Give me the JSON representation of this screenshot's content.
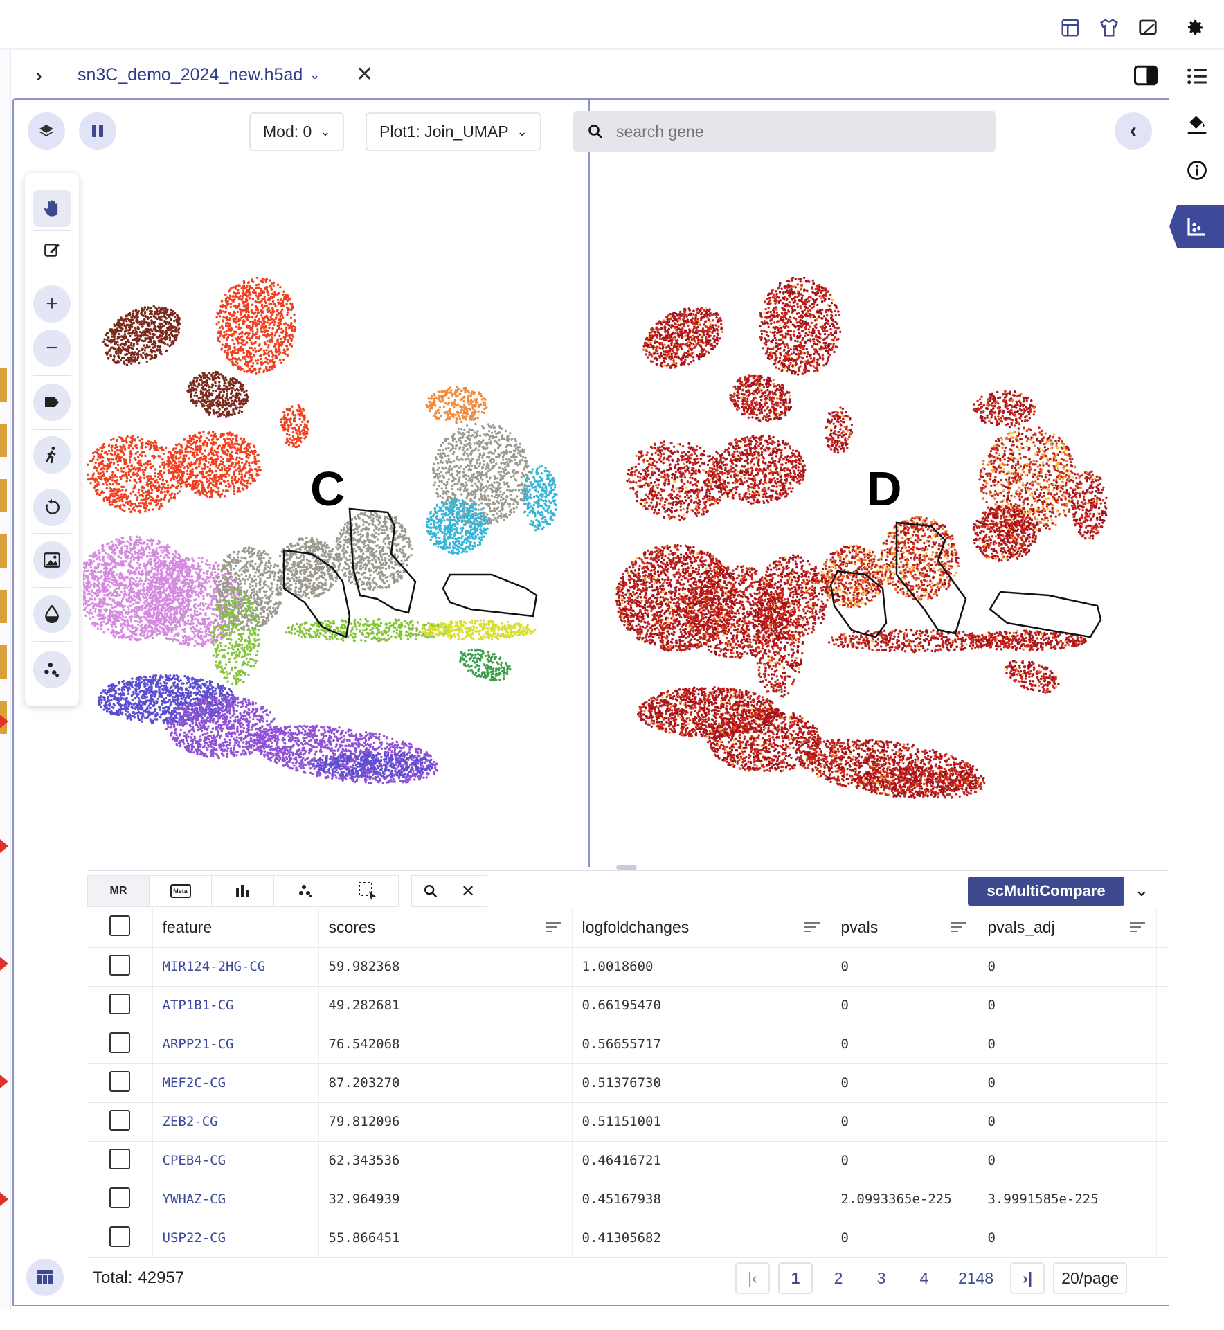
{
  "tab": {
    "title": "sn3C_demo_2024_new.h5ad"
  },
  "toolbar": {
    "mod_select": "Mod: 0",
    "plot_select": "Plot1: Join_UMAP",
    "search_placeholder": "search gene"
  },
  "plot_labels": {
    "left": "C",
    "right": "D"
  },
  "table": {
    "tabs": [
      "MR",
      "Meta",
      "bar-chart-icon",
      "scatter-icon",
      "select-icon"
    ],
    "compare_label": "scMultiCompare",
    "columns": [
      "feature",
      "scores",
      "logfoldchanges",
      "pvals",
      "pvals_adj"
    ],
    "rows": [
      {
        "feature": "MIR124-2HG-CG",
        "scores": "59.982368",
        "logfoldchanges": "1.0018600",
        "pvals": "0",
        "pvals_adj": "0"
      },
      {
        "feature": "ATP1B1-CG",
        "scores": "49.282681",
        "logfoldchanges": "0.66195470",
        "pvals": "0",
        "pvals_adj": "0"
      },
      {
        "feature": "ARPP21-CG",
        "scores": "76.542068",
        "logfoldchanges": "0.56655717",
        "pvals": "0",
        "pvals_adj": "0"
      },
      {
        "feature": "MEF2C-CG",
        "scores": "87.203270",
        "logfoldchanges": "0.51376730",
        "pvals": "0",
        "pvals_adj": "0"
      },
      {
        "feature": "ZEB2-CG",
        "scores": "79.812096",
        "logfoldchanges": "0.51151001",
        "pvals": "0",
        "pvals_adj": "0"
      },
      {
        "feature": "CPEB4-CG",
        "scores": "62.343536",
        "logfoldchanges": "0.46416721",
        "pvals": "0",
        "pvals_adj": "0"
      },
      {
        "feature": "YWHAZ-CG",
        "scores": "32.964939",
        "logfoldchanges": "0.45167938",
        "pvals": "2.0993365e-225",
        "pvals_adj": "3.9991585e-225"
      },
      {
        "feature": "USP22-CG",
        "scores": "55.866451",
        "logfoldchanges": "0.41305682",
        "pvals": "0",
        "pvals_adj": "0"
      }
    ]
  },
  "footer": {
    "total_label": "Total:",
    "total_value": "42957",
    "pages": [
      "1",
      "2",
      "3",
      "4",
      "2148"
    ],
    "current_page": "1",
    "page_size": "20/page"
  },
  "icons": {
    "top": [
      "layout-icon",
      "shirt-icon",
      "monitor-icon",
      "settings-gear-icon"
    ],
    "right_sidebar": [
      "list-icon",
      "paint-bucket-icon",
      "info-icon",
      "chart-icon"
    ],
    "plot_tools": [
      "hand-pan-icon",
      "edit-icon",
      "zoom-in-icon",
      "zoom-out-icon",
      "label-tag-icon",
      "walk-icon",
      "reset-icon",
      "image-export-icon",
      "droplet-icon",
      "scatter-points-icon"
    ]
  },
  "colors": {
    "accent": "#3d4a8f",
    "panel_border": "#8b93c9",
    "button_bg": "#e1e4f6",
    "cluster_palette": [
      "#7a2a1c",
      "#f0401f",
      "#f28a3c",
      "#9c9a8e",
      "#36b6d6",
      "#d58be0",
      "#84c43a",
      "#d7e032",
      "#3ca04a",
      "#5a4fd1",
      "#9153d6"
    ],
    "expression_palette": [
      "#a3111c",
      "#c92a1c",
      "#f07a30",
      "#f6c045"
    ]
  }
}
